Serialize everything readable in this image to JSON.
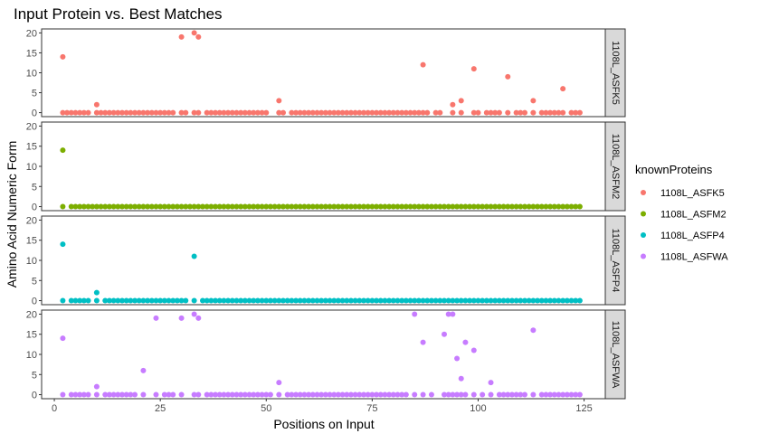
{
  "chart_data": {
    "type": "scatter",
    "title": "Input Protein vs. Best Matches",
    "xlabel": "Positions on Input",
    "ylabel": "Amino Acid Numeric Form",
    "xlim": [
      -3,
      130
    ],
    "ylim": [
      -1,
      21
    ],
    "x_ticks": [
      0,
      25,
      50,
      75,
      100,
      125
    ],
    "y_ticks": [
      0,
      5,
      10,
      15,
      20
    ],
    "grid": false,
    "legend_position": "right",
    "legend_title": "knownProteins",
    "x_range": [
      1,
      124
    ],
    "series": [
      {
        "name": "1108L_ASFK5",
        "color": "#F8766D",
        "nonzero": [
          [
            2,
            14
          ],
          [
            10,
            2
          ],
          [
            30,
            19
          ],
          [
            33,
            20
          ],
          [
            34,
            19
          ],
          [
            53,
            3
          ],
          [
            87,
            12
          ],
          [
            94,
            2
          ],
          [
            96,
            3
          ],
          [
            99,
            11
          ],
          [
            107,
            9
          ],
          [
            113,
            3
          ],
          [
            120,
            6
          ]
        ],
        "gaps": [
          1,
          9,
          29,
          32,
          35,
          51,
          52,
          55,
          89,
          92,
          93,
          95,
          97,
          98,
          101,
          106,
          108,
          112,
          114,
          121
        ]
      },
      {
        "name": "1108L_ASFM2",
        "color": "#7CAE00",
        "nonzero": [
          [
            2,
            14
          ]
        ],
        "gaps": [
          1,
          3
        ]
      },
      {
        "name": "1108L_ASFP4",
        "color": "#00BFC4",
        "nonzero": [
          [
            2,
            14
          ],
          [
            10,
            2
          ],
          [
            33,
            11
          ]
        ],
        "gaps": [
          1,
          3,
          9,
          11,
          32,
          34
        ]
      },
      {
        "name": "1108L_ASFWA",
        "color": "#C77CFF",
        "nonzero": [
          [
            2,
            14
          ],
          [
            10,
            2
          ],
          [
            21,
            6
          ],
          [
            24,
            19
          ],
          [
            30,
            19
          ],
          [
            33,
            20
          ],
          [
            34,
            19
          ],
          [
            53,
            3
          ],
          [
            85,
            20
          ],
          [
            87,
            13
          ],
          [
            92,
            15
          ],
          [
            93,
            20
          ],
          [
            94,
            20
          ],
          [
            95,
            9
          ],
          [
            96,
            4
          ],
          [
            97,
            13
          ],
          [
            99,
            11
          ],
          [
            103,
            3
          ],
          [
            113,
            16
          ]
        ],
        "gaps": [
          1,
          3,
          9,
          11,
          20,
          22,
          23,
          25,
          29,
          31,
          32,
          35,
          52,
          54,
          84,
          86,
          88,
          90,
          91,
          98,
          100,
          102,
          104,
          112,
          114
        ]
      }
    ]
  }
}
